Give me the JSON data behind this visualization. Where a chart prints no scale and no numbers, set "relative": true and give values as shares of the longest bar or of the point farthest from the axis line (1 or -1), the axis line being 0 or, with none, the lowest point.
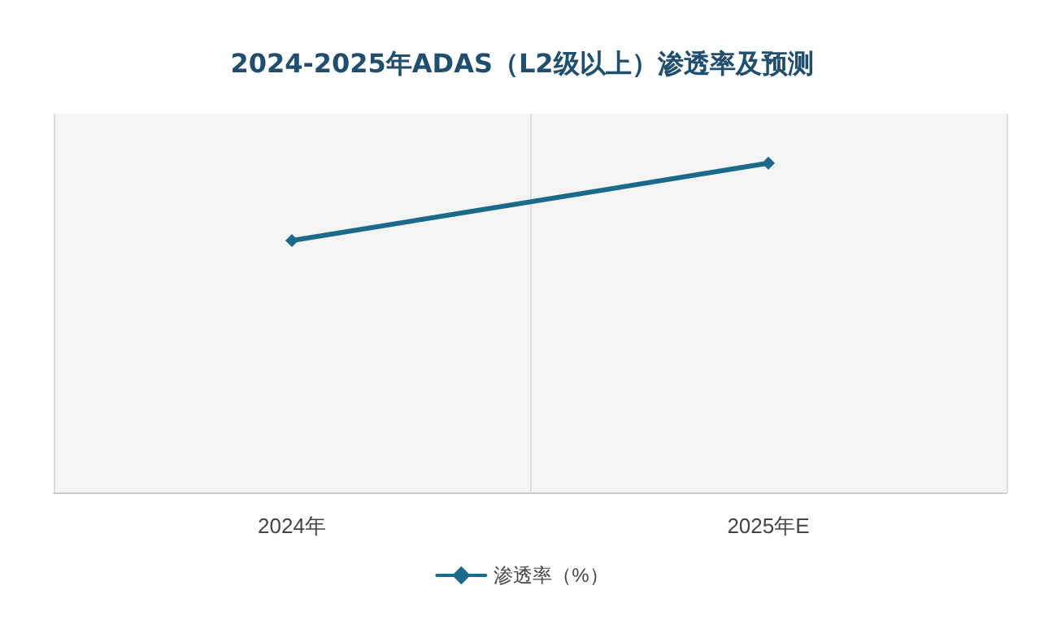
{
  "chart_data": {
    "type": "line",
    "title": "2024-2025年ADAS（L2级以上）渗透率及预测",
    "categories": [
      "2024年",
      "2025年E"
    ],
    "relative": true,
    "series": [
      {
        "name": "渗透率（%）",
        "color": "#1b6a8c",
        "values": [
          0.765,
          1
        ]
      }
    ],
    "marker": "diamond",
    "line_style": "solid",
    "grid": "x",
    "legend": "bottom"
  }
}
